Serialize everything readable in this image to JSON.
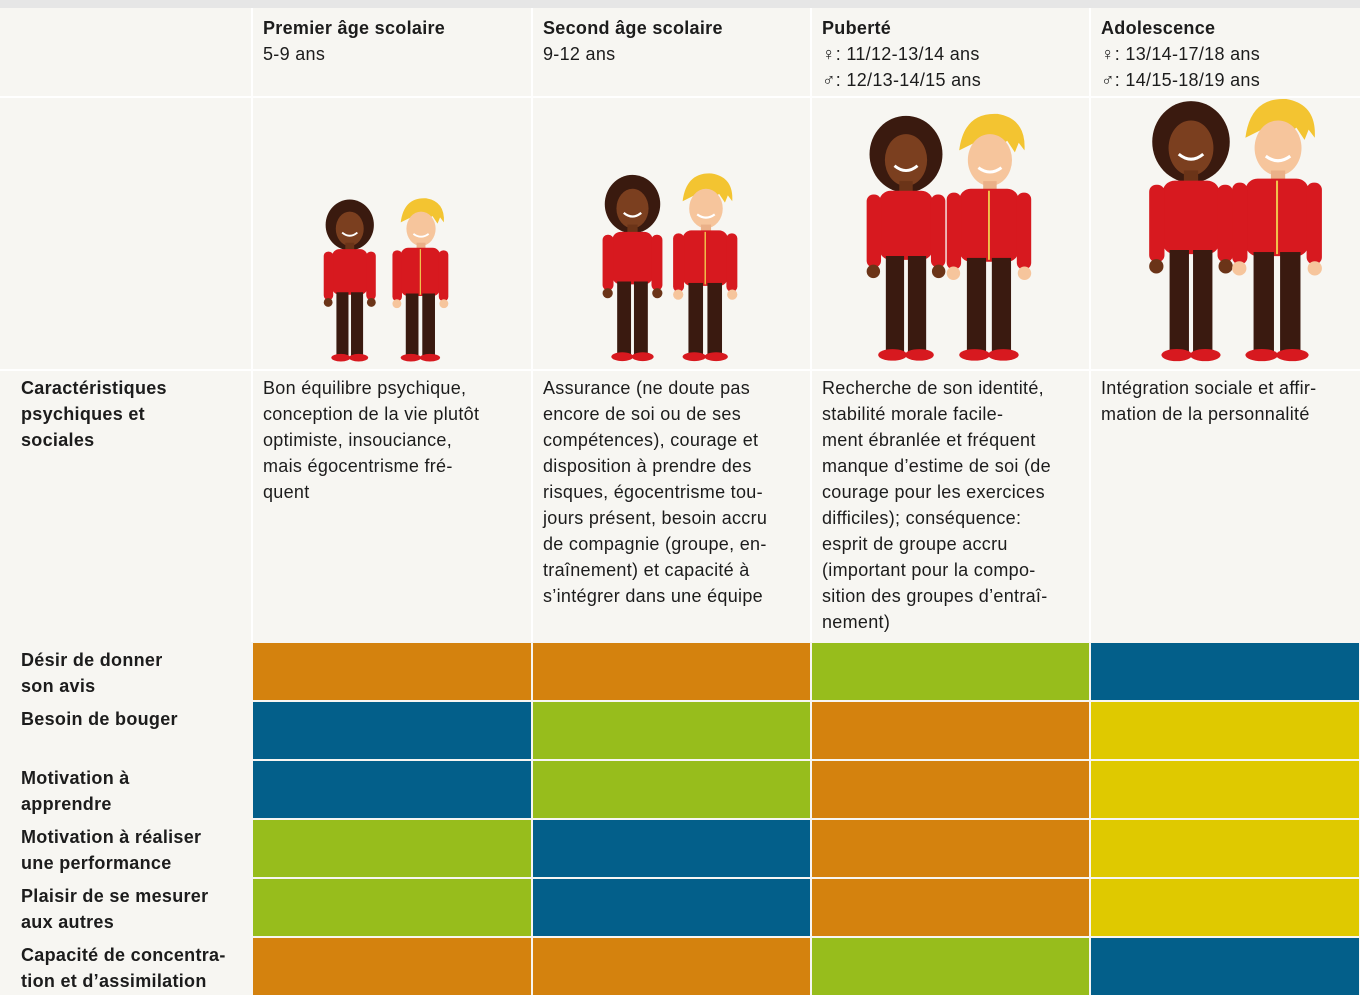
{
  "header": {
    "columns": [
      {
        "title": "Premier âge scolaire",
        "lines": [
          "5-9 ans"
        ]
      },
      {
        "title": "Second âge scolaire",
        "lines": [
          "9-12 ans"
        ]
      },
      {
        "title": "Puberté",
        "lines": [
          "♀: 11/12-13/14 ans",
          "♂: 12/13-14/15 ans"
        ]
      },
      {
        "title": "Adolescence",
        "lines": [
          "♀: 13/14-17/18 ans",
          "♂: 14/15-18/19 ans"
        ]
      }
    ]
  },
  "characteristics": {
    "label": [
      "Caractéristiques",
      "psychiques et",
      "sociales"
    ],
    "cells": [
      [
        "Bon équilibre psychique,",
        "conception de la vie plutôt",
        "optimiste, insouciance,",
        "mais égocentrisme fré-",
        "quent"
      ],
      [
        "Assurance (ne doute pas",
        "encore de soi ou de ses",
        "compétences), courage et",
        "disposition à prendre des",
        "risques, égocentrisme tou-",
        "jours présent, besoin accru",
        "de compagnie (groupe, en-",
        "traînement) et capacité à",
        "s’intégrer dans une équipe"
      ],
      [
        "Recherche de son identité,",
        "stabilité morale facile-",
        "ment ébranlée et fréquent",
        "manque d’estime de soi (de",
        "courage pour les exercices",
        "difficiles); conséquence:",
        "esprit de groupe accru",
        "(important pour la compo-",
        "sition des groupes d’entraî-",
        "nement)"
      ],
      [
        "Intégration sociale et affir-",
        "mation de la personnalité"
      ]
    ]
  },
  "rows": [
    {
      "label": [
        "Désir de donner",
        "son avis"
      ],
      "colors": [
        "#d4820e",
        "#d4820e",
        "#97bd1c",
        "#035f8a"
      ]
    },
    {
      "label": [
        "Besoin de bouger"
      ],
      "colors": [
        "#035f8a",
        "#97bd1c",
        "#d4820e",
        "#dfc900"
      ]
    },
    {
      "label": [
        "Motivation à",
        "apprendre"
      ],
      "colors": [
        "#035f8a",
        "#97bd1c",
        "#d4820e",
        "#dfc900"
      ]
    },
    {
      "label": [
        "Motivation à réaliser",
        "une performance"
      ],
      "colors": [
        "#97bd1c",
        "#035f8a",
        "#d4820e",
        "#dfc900"
      ]
    },
    {
      "label": [
        "Plaisir de se mesurer",
        "aux autres"
      ],
      "colors": [
        "#97bd1c",
        "#035f8a",
        "#d4820e",
        "#dfc900"
      ]
    },
    {
      "label": [
        "Capacité de concentra-",
        "tion et d’assimilation"
      ],
      "colors": [
        "#d4820e",
        "#d4820e",
        "#97bd1c",
        "#035f8a"
      ]
    }
  ]
}
